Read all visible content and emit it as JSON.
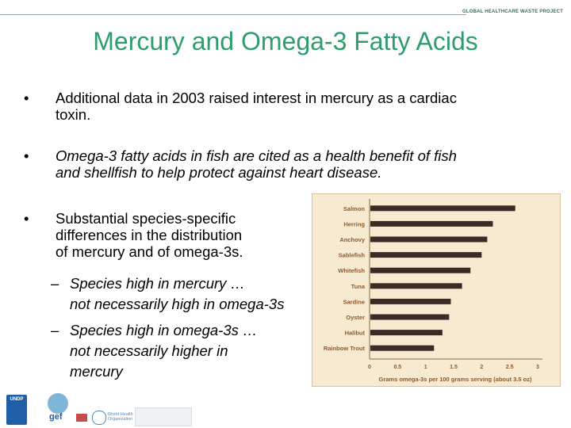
{
  "header": {
    "project": "GLOBAL HEALTHCARE WASTE PROJECT"
  },
  "title": "Mercury and Omega-3 Fatty Acids",
  "bullets": [
    {
      "marker": "•",
      "lines": [
        "Additional data in 2003 raised interest in mercury as a cardiac",
        "toxin."
      ]
    },
    {
      "marker": "•",
      "lines": [
        "Omega-3 fatty acids in fish are cited as a health benefit of fish",
        "and shellfish to help protect against heart disease."
      ]
    },
    {
      "marker": "•",
      "lines": [
        "Substantial species-specific",
        "differences in the distribution",
        "of mercury and of omega-3s."
      ]
    }
  ],
  "subbullets": [
    {
      "marker": "–",
      "lines": [
        "Species high in mercury …",
        "not necessarily high in omega-3s"
      ]
    },
    {
      "marker": "–",
      "lines": [
        "Species high in omega-3s …",
        "not necessarily higher in",
        "mercury"
      ]
    }
  ],
  "chart_data": {
    "type": "bar",
    "orientation": "horizontal",
    "categories": [
      "Salmon",
      "Herring",
      "Anchovy",
      "Sablefish",
      "Whitefish",
      "Tuna",
      "Sardine",
      "Oyster",
      "Halibut",
      "Rainbow Trout"
    ],
    "values": [
      2.6,
      2.2,
      2.1,
      2.0,
      1.8,
      1.65,
      1.45,
      1.42,
      1.3,
      1.15
    ],
    "xlabel": "Grams omega-3s per 100 grams serving (about 3.5 oz)",
    "xticks": [
      "0",
      "0.5",
      "1",
      "1.5",
      "2",
      "2.5",
      "3"
    ],
    "xlim": [
      0,
      3
    ],
    "bar_color": "#3b2a26",
    "label_color": "#8a5a2e",
    "background": "#f7ead0"
  },
  "footer": {
    "logos": [
      {
        "name": "undp",
        "text": "UNDP"
      },
      {
        "name": "gef",
        "text": "gef"
      },
      {
        "name": "who",
        "text": "World Health Organization"
      },
      {
        "name": "uni",
        "text": ""
      }
    ]
  }
}
